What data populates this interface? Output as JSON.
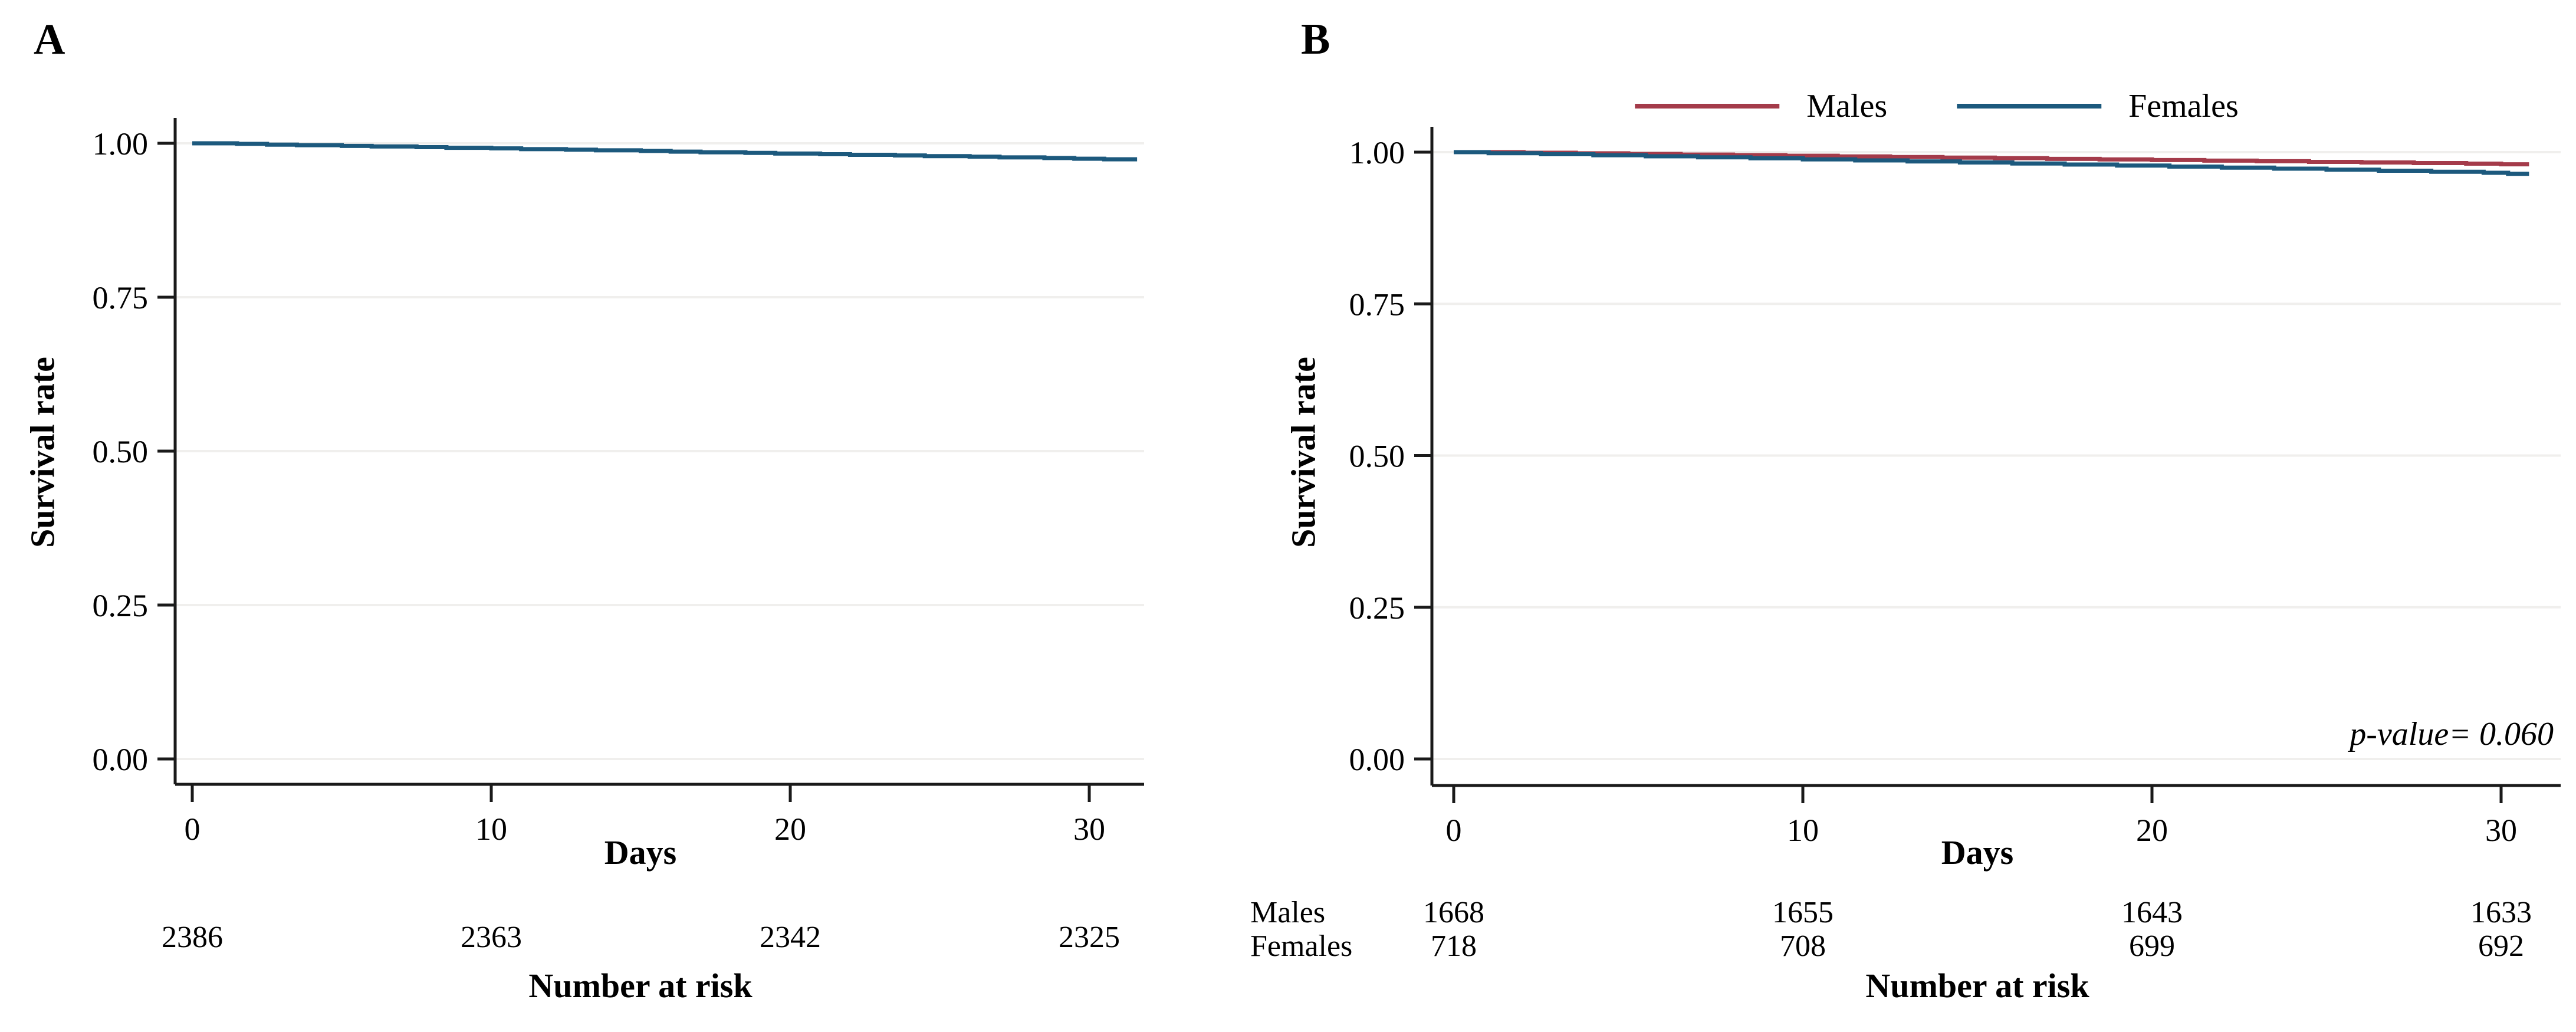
{
  "figure": {
    "background": "#ffffff"
  },
  "colors": {
    "axis": "#1a1a1a",
    "grid": "#f0efed",
    "text": "#000000",
    "males_red": "#a43b4a",
    "females_blue": "#1c597d"
  },
  "chart_data": {
    "type": "line",
    "subtype": "kaplan_meier_survival_step",
    "panels": [
      {
        "label": "A",
        "xlabel": "Days",
        "ylabel": "Survival rate",
        "grid": true,
        "xlim": [
          0,
          31.6
        ],
        "ylim": [
          0,
          1.0
        ],
        "xticks": {
          "values": [
            0,
            10,
            20,
            30
          ],
          "labels": [
            "0",
            "10",
            "20",
            "30"
          ]
        },
        "yticks": {
          "values": [
            1.0,
            0.75,
            0.5,
            0.25,
            0.0
          ],
          "labels": [
            "1.00",
            "0.75",
            "0.50",
            "0.25",
            "0.00"
          ]
        },
        "series": [
          {
            "name": "",
            "color": "#1c597d",
            "steps": [
              [
                0,
                1.0
              ],
              [
                1.5,
                0.999
              ],
              [
                2.5,
                0.9979
              ],
              [
                3.5,
                0.9969
              ],
              [
                5,
                0.9958
              ],
              [
                6,
                0.9948
              ],
              [
                7.5,
                0.9938
              ],
              [
                8.5,
                0.9927
              ],
              [
                10,
                0.9917
              ],
              [
                11,
                0.9906
              ],
              [
                12.5,
                0.9896
              ],
              [
                13.5,
                0.9886
              ],
              [
                15,
                0.9875
              ],
              [
                16,
                0.9865
              ],
              [
                17,
                0.9854
              ],
              [
                18.5,
                0.9844
              ],
              [
                19.5,
                0.9834
              ],
              [
                21,
                0.9823
              ],
              [
                22,
                0.9813
              ],
              [
                23.5,
                0.9802
              ],
              [
                24.5,
                0.9792
              ],
              [
                26,
                0.9782
              ],
              [
                27,
                0.9771
              ],
              [
                28.5,
                0.9761
              ],
              [
                29.5,
                0.975
              ],
              [
                30.5,
                0.974
              ]
            ]
          }
        ],
        "risk_table": {
          "title": "Number at risk",
          "rows": [
            {
              "label": "",
              "values": [
                "2386",
                "2363",
                "2342",
                "2325"
              ]
            }
          ]
        }
      },
      {
        "label": "B",
        "xlabel": "Days",
        "ylabel": "Survival rate",
        "grid": true,
        "xlim": [
          0,
          30.8
        ],
        "ylim": [
          0,
          1.0
        ],
        "legend": [
          "Males",
          "Females"
        ],
        "legend_position": "top",
        "annotation": "p-value= 0.060",
        "xticks": {
          "values": [
            0,
            10,
            20,
            30
          ],
          "labels": [
            "0",
            "10",
            "20",
            "30"
          ]
        },
        "yticks": {
          "values": [
            1.0,
            0.75,
            0.5,
            0.25,
            0.0
          ],
          "labels": [
            "1.00",
            "0.75",
            "0.50",
            "0.25",
            "0.00"
          ]
        },
        "series": [
          {
            "name": "Males",
            "color": "#a43b4a",
            "steps": [
              [
                0,
                1.0
              ],
              [
                2,
                0.999
              ],
              [
                3.5,
                0.998
              ],
              [
                5,
                0.997
              ],
              [
                6.5,
                0.996
              ],
              [
                8,
                0.995
              ],
              [
                9.5,
                0.994
              ],
              [
                11,
                0.993
              ],
              [
                12.5,
                0.992
              ],
              [
                14,
                0.991
              ],
              [
                15.5,
                0.99
              ],
              [
                17,
                0.989
              ],
              [
                18.5,
                0.988
              ],
              [
                20,
                0.987
              ],
              [
                21.5,
                0.986
              ],
              [
                23,
                0.985
              ],
              [
                24.5,
                0.984
              ],
              [
                26,
                0.983
              ],
              [
                27.5,
                0.982
              ],
              [
                29,
                0.981
              ],
              [
                30,
                0.98
              ]
            ]
          },
          {
            "name": "Females",
            "color": "#1c597d",
            "steps": [
              [
                0,
                1.0
              ],
              [
                1,
                0.9983
              ],
              [
                2.5,
                0.9966
              ],
              [
                4,
                0.9949
              ],
              [
                5.5,
                0.9932
              ],
              [
                7,
                0.9915
              ],
              [
                8.5,
                0.9898
              ],
              [
                10,
                0.9881
              ],
              [
                11.5,
                0.9864
              ],
              [
                13,
                0.9847
              ],
              [
                14.5,
                0.983
              ],
              [
                16,
                0.9813
              ],
              [
                17.5,
                0.9796
              ],
              [
                19,
                0.9779
              ],
              [
                20.5,
                0.9762
              ],
              [
                22,
                0.9745
              ],
              [
                23.5,
                0.9728
              ],
              [
                25,
                0.9711
              ],
              [
                26.5,
                0.9694
              ],
              [
                28,
                0.9677
              ],
              [
                29.5,
                0.966
              ],
              [
                30.2,
                0.9643
              ]
            ]
          }
        ],
        "risk_table": {
          "title": "Number at risk",
          "rows": [
            {
              "label": "Males",
              "values": [
                "1668",
                "1655",
                "1643",
                "1633"
              ]
            },
            {
              "label": "Females",
              "values": [
                "718",
                "708",
                "699",
                "692"
              ]
            }
          ]
        }
      }
    ]
  }
}
